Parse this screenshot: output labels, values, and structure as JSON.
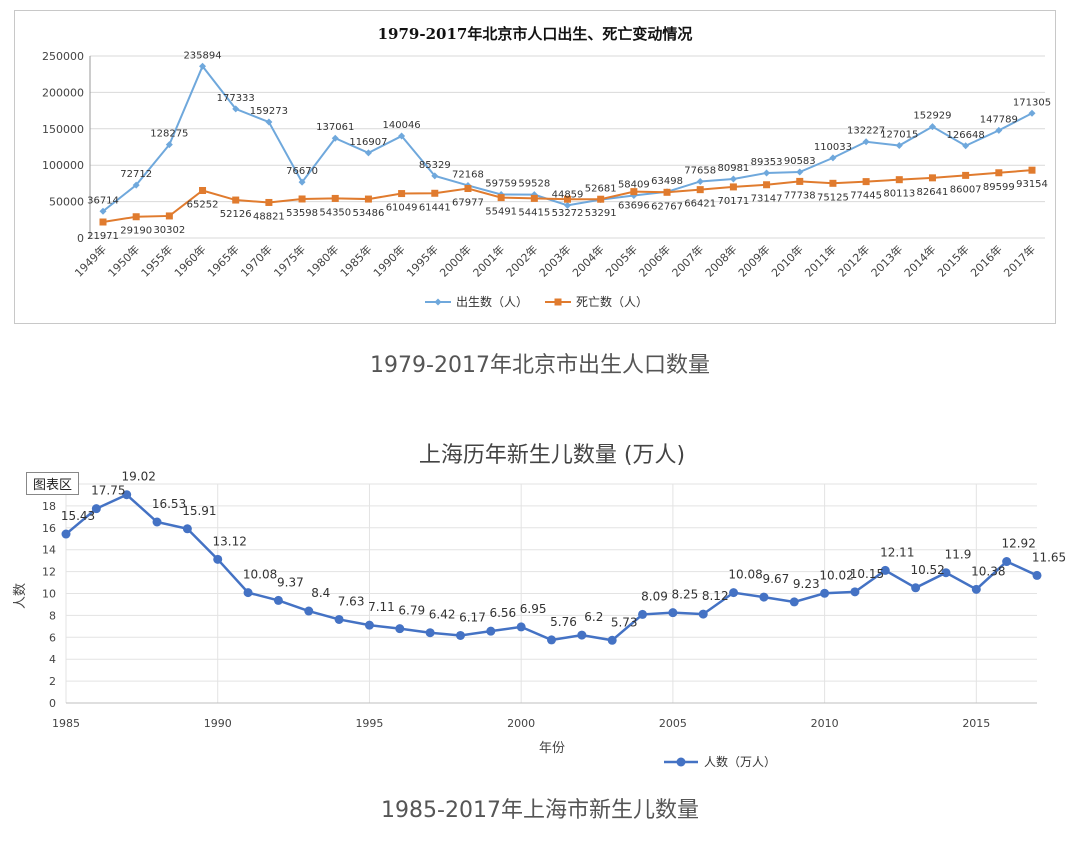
{
  "chart_data": [
    {
      "type": "line",
      "title": "1979-2017年北京市人口出生、死亡变动情况",
      "caption": "1979-2017年北京市出生人口数量",
      "categories": [
        "1949年",
        "1950年",
        "1955年",
        "1960年",
        "1965年",
        "1970年",
        "1975年",
        "1980年",
        "1985年",
        "1990年",
        "1995年",
        "2000年",
        "2001年",
        "2002年",
        "2003年",
        "2004年",
        "2005年",
        "2006年",
        "2007年",
        "2008年",
        "2009年",
        "2010年",
        "2011年",
        "2012年",
        "2013年",
        "2014年",
        "2015年",
        "2016年",
        "2017年"
      ],
      "ylim": [
        0,
        250000
      ],
      "yticks": [
        "0",
        "50000",
        "100000",
        "150000",
        "200000",
        "250000"
      ],
      "grid": true,
      "legend": "bottom",
      "series": [
        {
          "name": "出生数（人）",
          "color": "#6fa8dc",
          "values": [
            36714,
            72712,
            128275,
            235894,
            177333,
            159273,
            76670,
            137061,
            116907,
            140046,
            85329,
            72168,
            59759,
            59528,
            44859,
            52681,
            58409,
            63498,
            77658,
            80981,
            89353,
            90583,
            110033,
            132227,
            127015,
            152929,
            126648,
            147789,
            171305
          ]
        },
        {
          "name": "死亡数（人）",
          "color": "#e07b2e",
          "values": [
            21971,
            29190,
            30302,
            65252,
            52126,
            48821,
            53598,
            54350,
            53486,
            61049,
            61441,
            67977,
            55491,
            54415,
            53272,
            53291,
            63696,
            62767,
            66421,
            70171,
            73147,
            77738,
            75125,
            77445,
            80113,
            82641,
            86007,
            89599,
            93154
          ]
        }
      ]
    },
    {
      "type": "line",
      "title": "上海历年新生儿数量 (万人)",
      "caption": "1985-2017年上海市新生儿数量",
      "badge": "图表区",
      "xlabel": "年份",
      "ylabel": "人数",
      "xlim": [
        1985,
        2017
      ],
      "xticks": [
        "1985",
        "1990",
        "1995",
        "2000",
        "2005",
        "2010",
        "2015"
      ],
      "ylim": [
        0,
        20
      ],
      "yticks": [
        "0",
        "2",
        "4",
        "6",
        "8",
        "10",
        "12",
        "14",
        "16",
        "18"
      ],
      "grid": true,
      "legend": "bottom",
      "series": [
        {
          "name": "人数（万人）",
          "color": "#4472c4",
          "x": [
            1985,
            1986,
            1987,
            1988,
            1989,
            1990,
            1991,
            1992,
            1993,
            1994,
            1995,
            1996,
            1997,
            1998,
            1999,
            2000,
            2001,
            2002,
            2003,
            2004,
            2005,
            2006,
            2007,
            2008,
            2009,
            2010,
            2011,
            2012,
            2013,
            2014,
            2015,
            2016,
            2017
          ],
          "values": [
            15.43,
            17.75,
            19.02,
            16.53,
            15.91,
            13.12,
            10.08,
            9.37,
            8.4,
            7.63,
            7.11,
            6.79,
            6.42,
            6.17,
            6.56,
            6.95,
            5.76,
            6.2,
            5.73,
            8.09,
            8.25,
            8.12,
            10.08,
            9.67,
            9.23,
            10.02,
            10.15,
            12.11,
            10.52,
            11.9,
            10.38,
            12.92,
            11.65
          ],
          "labels": [
            "15.43",
            "17.75",
            "19.02",
            "16.53",
            "15.91",
            "13.12",
            "10.08",
            "9.37",
            "8.4",
            "7.63",
            "7.11",
            "6.79",
            "6.42",
            "6.17",
            "6.56",
            "6.95",
            "5.76",
            "6.2",
            "5.73",
            "8.09",
            "8.25",
            "8.12",
            "10.08",
            "9.67",
            "9.23",
            "10.02",
            "10.15",
            "12.11",
            "10.52",
            "11.9",
            "10.38",
            "12.92",
            "11.65"
          ]
        }
      ]
    }
  ]
}
